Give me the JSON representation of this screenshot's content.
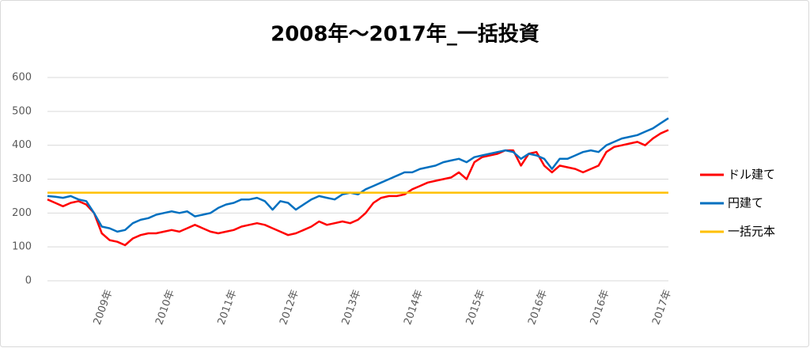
{
  "chart_data": {
    "type": "line",
    "title": "2008年～2017年_一括投資",
    "categories": [
      null,
      null,
      null,
      null,
      null,
      null,
      null,
      null,
      "2009年",
      null,
      null,
      null,
      null,
      null,
      null,
      null,
      "2010年",
      null,
      null,
      null,
      null,
      null,
      null,
      null,
      "2011年",
      null,
      null,
      null,
      null,
      null,
      null,
      null,
      "2012年",
      null,
      null,
      null,
      null,
      null,
      null,
      null,
      "2013年",
      null,
      null,
      null,
      null,
      null,
      null,
      null,
      "2014年",
      null,
      null,
      null,
      null,
      null,
      null,
      null,
      "2015年",
      null,
      null,
      null,
      null,
      null,
      null,
      null,
      "2016年",
      null,
      null,
      null,
      null,
      null,
      null,
      null,
      "2016年",
      null,
      null,
      null,
      null,
      null,
      null,
      null,
      "2017年"
    ],
    "series": [
      {
        "name": "ドル建て",
        "color": "#ff0000",
        "values": [
          240,
          230,
          220,
          230,
          235,
          225,
          200,
          140,
          120,
          115,
          105,
          125,
          135,
          140,
          140,
          145,
          150,
          145,
          155,
          165,
          155,
          145,
          140,
          145,
          150,
          160,
          165,
          170,
          165,
          155,
          145,
          135,
          140,
          150,
          160,
          175,
          165,
          170,
          175,
          170,
          180,
          200,
          230,
          245,
          250,
          250,
          255,
          270,
          280,
          290,
          295,
          300,
          305,
          320,
          300,
          350,
          365,
          370,
          375,
          385,
          385,
          340,
          375,
          380,
          340,
          320,
          340,
          335,
          330,
          320,
          330,
          340,
          380,
          395,
          400,
          405,
          410,
          400,
          420,
          435,
          445
        ]
      },
      {
        "name": "円建て",
        "color": "#0070c0",
        "values": [
          250,
          248,
          245,
          250,
          240,
          235,
          200,
          160,
          155,
          145,
          150,
          170,
          180,
          185,
          195,
          200,
          205,
          200,
          205,
          190,
          195,
          200,
          215,
          225,
          230,
          240,
          240,
          245,
          235,
          210,
          235,
          230,
          210,
          225,
          240,
          250,
          245,
          240,
          255,
          260,
          255,
          270,
          280,
          290,
          300,
          310,
          320,
          320,
          330,
          335,
          340,
          350,
          355,
          360,
          350,
          365,
          370,
          375,
          380,
          385,
          380,
          360,
          375,
          370,
          360,
          330,
          360,
          360,
          370,
          380,
          385,
          380,
          400,
          410,
          420,
          425,
          430,
          440,
          450,
          465,
          480
        ]
      },
      {
        "name": "一括元本",
        "color": "#ffc000",
        "values": [
          260,
          260,
          260,
          260,
          260,
          260,
          260,
          260,
          260,
          260,
          260,
          260,
          260,
          260,
          260,
          260,
          260,
          260,
          260,
          260,
          260,
          260,
          260,
          260,
          260,
          260,
          260,
          260,
          260,
          260,
          260,
          260,
          260,
          260,
          260,
          260,
          260,
          260,
          260,
          260,
          260,
          260,
          260,
          260,
          260,
          260,
          260,
          260,
          260,
          260,
          260,
          260,
          260,
          260,
          260,
          260,
          260,
          260,
          260,
          260,
          260,
          260,
          260,
          260,
          260,
          260,
          260,
          260,
          260,
          260,
          260,
          260,
          260,
          260,
          260,
          260,
          260,
          260,
          260,
          260,
          260
        ]
      }
    ],
    "ylim": [
      0,
      600
    ],
    "yticks": [
      0,
      100,
      200,
      300,
      400,
      500,
      600
    ],
    "grid": true,
    "legend": "right"
  }
}
